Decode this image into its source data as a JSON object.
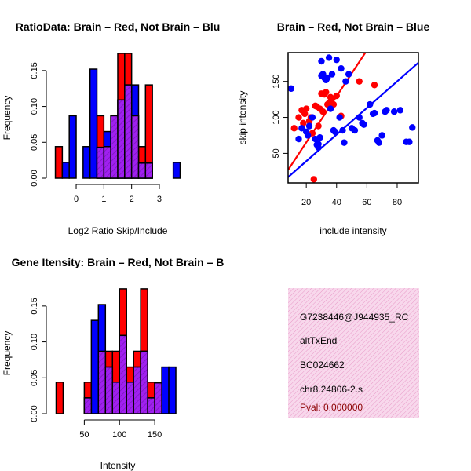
{
  "colors": {
    "red": "#ff0000",
    "blue": "#0000ff",
    "overlap_fill": "#a020f0",
    "info_bg": "#f8d8ec",
    "info_hatch": "#e89ac8",
    "pval": "#8b0000"
  },
  "chart_data": [
    {
      "type": "bar",
      "title": "RatioData: Brain – Red, Not Brain – Blu",
      "xlabel": "Log2 Ratio Skip/Include",
      "ylabel": "Frequency",
      "xlim": [
        -0.85,
        3.85
      ],
      "ylim": [
        0,
        0.175
      ],
      "xticks": [
        "0",
        "1",
        "2",
        "3"
      ],
      "xtick_values": [
        0,
        1,
        2,
        3
      ],
      "yticks": [
        "0.00",
        "0.05",
        "0.10",
        "0.15"
      ],
      "ytick_values": [
        0,
        0.05,
        0.1,
        0.15
      ],
      "bin_width": 0.25,
      "series": [
        {
          "name": "Brain",
          "color": "red",
          "bins": [
            [
              -0.75,
              0.044
            ],
            [
              0.75,
              0.087
            ],
            [
              1.0,
              0.044
            ],
            [
              1.25,
              0.087
            ],
            [
              1.5,
              0.174
            ],
            [
              1.75,
              0.174
            ],
            [
              2.0,
              0.087
            ],
            [
              2.25,
              0.044
            ],
            [
              2.5,
              0.13
            ]
          ]
        },
        {
          "name": "Not Brain",
          "color": "blue",
          "bins": [
            [
              -0.5,
              0.022
            ],
            [
              -0.25,
              0.087
            ],
            [
              0.25,
              0.044
            ],
            [
              0.5,
              0.152
            ],
            [
              0.75,
              0.043
            ],
            [
              1.0,
              0.065
            ],
            [
              1.25,
              0.087
            ],
            [
              1.5,
              0.109
            ],
            [
              1.75,
              0.13
            ],
            [
              2.0,
              0.13
            ],
            [
              2.25,
              0.021
            ],
            [
              2.5,
              0.021
            ],
            [
              3.5,
              0.022
            ]
          ]
        }
      ]
    },
    {
      "type": "scatter",
      "title": "Brain – Red, Not Brain – Blue",
      "xlabel": "include intensity",
      "ylabel": "skip intensity",
      "xlim": [
        8,
        94
      ],
      "ylim": [
        9,
        190
      ],
      "xticks": [
        "20",
        "40",
        "60",
        "80"
      ],
      "xtick_values": [
        20,
        40,
        60,
        80
      ],
      "yticks": [
        "50",
        "100",
        "150"
      ],
      "ytick_values": [
        50,
        100,
        150
      ],
      "series": [
        {
          "name": "Brain",
          "color": "red",
          "points": [
            [
              12,
              85
            ],
            [
              15,
              100
            ],
            [
              17,
              110
            ],
            [
              18,
              92
            ],
            [
              19,
              105
            ],
            [
              20,
              112
            ],
            [
              22,
              95
            ],
            [
              23,
              100
            ],
            [
              24,
              78
            ],
            [
              25,
              14
            ],
            [
              26,
              116
            ],
            [
              27,
              115
            ],
            [
              28,
              88
            ],
            [
              29,
              112
            ],
            [
              30,
              133
            ],
            [
              31,
              108
            ],
            [
              32,
              132
            ],
            [
              33,
              135
            ],
            [
              34,
              118
            ],
            [
              35,
              120
            ],
            [
              36,
              128
            ],
            [
              37,
              126
            ],
            [
              38,
              118
            ],
            [
              40,
              130
            ],
            [
              43,
              102
            ],
            [
              55,
              150
            ],
            [
              65,
              145
            ]
          ],
          "trend": {
            "x": [
              8,
              59
            ],
            "y": [
              27,
              190
            ]
          }
        },
        {
          "name": "Not Brain",
          "color": "blue",
          "points": [
            [
              10,
              140
            ],
            [
              15,
              70
            ],
            [
              17,
              85
            ],
            [
              20,
              80
            ],
            [
              21,
              75
            ],
            [
              22,
              88
            ],
            [
              24,
              100
            ],
            [
              26,
              70
            ],
            [
              27,
              62
            ],
            [
              28,
              63
            ],
            [
              28,
              58
            ],
            [
              29,
              72
            ],
            [
              30,
              158
            ],
            [
              30,
              178
            ],
            [
              31,
              160
            ],
            [
              32,
              155
            ],
            [
              33,
              152
            ],
            [
              34,
              155
            ],
            [
              35,
              183
            ],
            [
              36,
              112
            ],
            [
              37,
              160
            ],
            [
              38,
              82
            ],
            [
              39,
              80
            ],
            [
              40,
              180
            ],
            [
              42,
              100
            ],
            [
              43,
              168
            ],
            [
              44,
              82
            ],
            [
              45,
              65
            ],
            [
              46,
              150
            ],
            [
              48,
              160
            ],
            [
              50,
              85
            ],
            [
              52,
              82
            ],
            [
              55,
              100
            ],
            [
              57,
              92
            ],
            [
              58,
              90
            ],
            [
              62,
              118
            ],
            [
              64,
              105
            ],
            [
              65,
              106
            ],
            [
              67,
              68
            ],
            [
              68,
              65
            ],
            [
              70,
              75
            ],
            [
              72,
              108
            ],
            [
              73,
              110
            ],
            [
              78,
              108
            ],
            [
              82,
              110
            ],
            [
              86,
              66
            ],
            [
              88,
              66
            ],
            [
              90,
              86
            ]
          ],
          "trend": {
            "x": [
              8,
              94
            ],
            "y": [
              17,
              176
            ]
          }
        }
      ]
    },
    {
      "type": "bar",
      "title": "Gene Itensity: Brain – Red, Not Brain – B",
      "xlabel": "Intensity",
      "ylabel": "Frequency",
      "xlim": [
        5,
        190
      ],
      "ylim": [
        0,
        0.175
      ],
      "xticks": [
        "50",
        "100",
        "150"
      ],
      "xtick_values": [
        50,
        100,
        150
      ],
      "yticks": [
        "0.00",
        "0.05",
        "0.10",
        "0.15"
      ],
      "yticks_values_note": "",
      "ytick_values": [
        0,
        0.05,
        0.1,
        0.15
      ],
      "bin_width": 10,
      "series": [
        {
          "name": "Brain",
          "color": "red",
          "bins": [
            [
              10,
              0.044
            ],
            [
              50,
              0.044
            ],
            [
              70,
              0.087
            ],
            [
              80,
              0.087
            ],
            [
              90,
              0.087
            ],
            [
              100,
              0.174
            ],
            [
              110,
              0.065
            ],
            [
              120,
              0.087
            ],
            [
              130,
              0.174
            ],
            [
              140,
              0.044
            ],
            [
              150,
              0.044
            ]
          ]
        },
        {
          "name": "Not Brain",
          "color": "blue",
          "bins": [
            [
              50,
              0.022
            ],
            [
              60,
              0.13
            ],
            [
              70,
              0.152
            ],
            [
              80,
              0.065
            ],
            [
              90,
              0.044
            ],
            [
              100,
              0.109
            ],
            [
              110,
              0.044
            ],
            [
              120,
              0.065
            ],
            [
              130,
              0.087
            ],
            [
              140,
              0.022
            ],
            [
              150,
              0.043
            ],
            [
              160,
              0.065
            ],
            [
              170,
              0.065
            ]
          ]
        }
      ]
    }
  ],
  "info": {
    "line1": "G7238446@J944935_RC",
    "line2": "altTxEnd",
    "line3": "BC024662",
    "line4": "chr8.24806-2.s",
    "pval": "Pval: 0.000000"
  }
}
